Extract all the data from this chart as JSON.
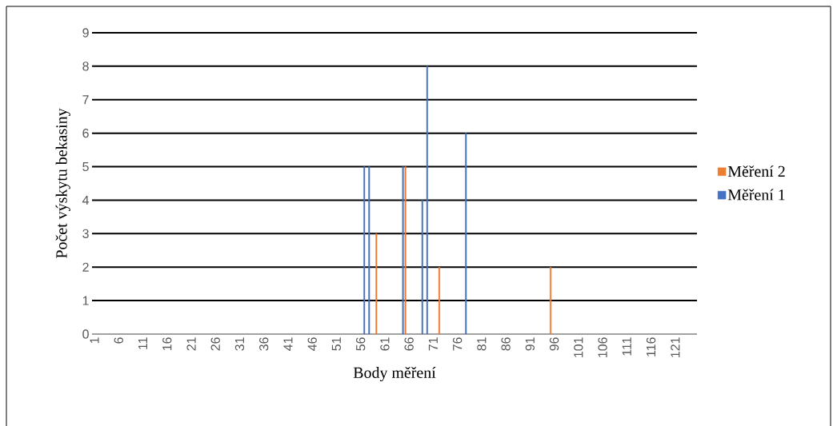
{
  "chart_data": {
    "type": "bar",
    "xlabel": "Body měření",
    "ylabel": "Počet výskytu bekasiny",
    "categories": [
      "1",
      null,
      null,
      null,
      null,
      "6",
      null,
      null,
      null,
      null,
      "11",
      null,
      null,
      null,
      null,
      "16",
      null,
      null,
      null,
      null,
      "21",
      null,
      null,
      null,
      null,
      "26",
      null,
      null,
      null,
      null,
      "31",
      null,
      null,
      null,
      null,
      "36",
      null,
      null,
      null,
      null,
      "41",
      null,
      null,
      null,
      null,
      "46",
      null,
      null,
      null,
      null,
      "51",
      null,
      null,
      null,
      null,
      "56",
      null,
      null,
      null,
      null,
      "61",
      null,
      null,
      null,
      null,
      "66",
      null,
      null,
      null,
      null,
      "71",
      null,
      null,
      null,
      null,
      "76",
      null,
      null,
      null,
      null,
      "81",
      null,
      null,
      null,
      null,
      "86",
      null,
      null,
      null,
      null,
      "91",
      null,
      null,
      null,
      null,
      "96",
      null,
      null,
      null,
      null,
      "101",
      null,
      null,
      null,
      null,
      "106",
      null,
      null,
      null,
      null,
      "111",
      null,
      null,
      null,
      null,
      "116",
      null,
      null,
      null,
      null,
      "121",
      null,
      null,
      null,
      null
    ],
    "series": [
      {
        "name": "Měření 1",
        "color": "#4472c4",
        "values": [
          null,
          null,
          null,
          null,
          null,
          null,
          null,
          null,
          null,
          null,
          null,
          null,
          null,
          null,
          null,
          null,
          null,
          null,
          null,
          null,
          null,
          null,
          null,
          null,
          null,
          null,
          null,
          null,
          null,
          null,
          null,
          null,
          null,
          null,
          null,
          null,
          null,
          null,
          null,
          null,
          null,
          null,
          null,
          null,
          null,
          null,
          null,
          null,
          null,
          null,
          null,
          null,
          null,
          null,
          null,
          null,
          5,
          5,
          null,
          null,
          null,
          null,
          null,
          null,
          5,
          null,
          null,
          null,
          4,
          8,
          null,
          null,
          null,
          null,
          null,
          null,
          null,
          6,
          null,
          null,
          null,
          null,
          null,
          null,
          null,
          null,
          null,
          null,
          null,
          null,
          null,
          null,
          null,
          null,
          null,
          null,
          null,
          null,
          null,
          null,
          null,
          null,
          null,
          null,
          null,
          null,
          null,
          null,
          null,
          null,
          null,
          null,
          null,
          null,
          null,
          null,
          null,
          null,
          null,
          null,
          null,
          null,
          null,
          null,
          null
        ]
      },
      {
        "name": "Měření 2",
        "color": "#ed7d31",
        "values": [
          null,
          null,
          null,
          null,
          null,
          null,
          null,
          null,
          null,
          null,
          null,
          null,
          null,
          null,
          null,
          null,
          null,
          null,
          null,
          null,
          null,
          null,
          null,
          null,
          null,
          null,
          null,
          null,
          null,
          null,
          null,
          null,
          null,
          null,
          null,
          null,
          null,
          null,
          null,
          null,
          null,
          null,
          null,
          null,
          null,
          null,
          null,
          null,
          null,
          null,
          null,
          null,
          null,
          null,
          null,
          null,
          null,
          null,
          3,
          null,
          null,
          null,
          null,
          null,
          5,
          null,
          null,
          null,
          null,
          null,
          null,
          2,
          null,
          null,
          null,
          null,
          null,
          null,
          null,
          null,
          null,
          null,
          null,
          null,
          null,
          null,
          null,
          null,
          null,
          null,
          null,
          null,
          null,
          null,
          2,
          null,
          null,
          null,
          null,
          null,
          null,
          null,
          null,
          null,
          null,
          null,
          null,
          null,
          null,
          null,
          null,
          null,
          null,
          null,
          null,
          null,
          null,
          null,
          null,
          null,
          null,
          null,
          null,
          null,
          null
        ]
      }
    ],
    "ylim": [
      0,
      9
    ],
    "yticks": [
      0,
      1,
      2,
      3,
      4,
      5,
      6,
      7,
      8,
      9
    ],
    "grid": "y",
    "legend": "right"
  }
}
